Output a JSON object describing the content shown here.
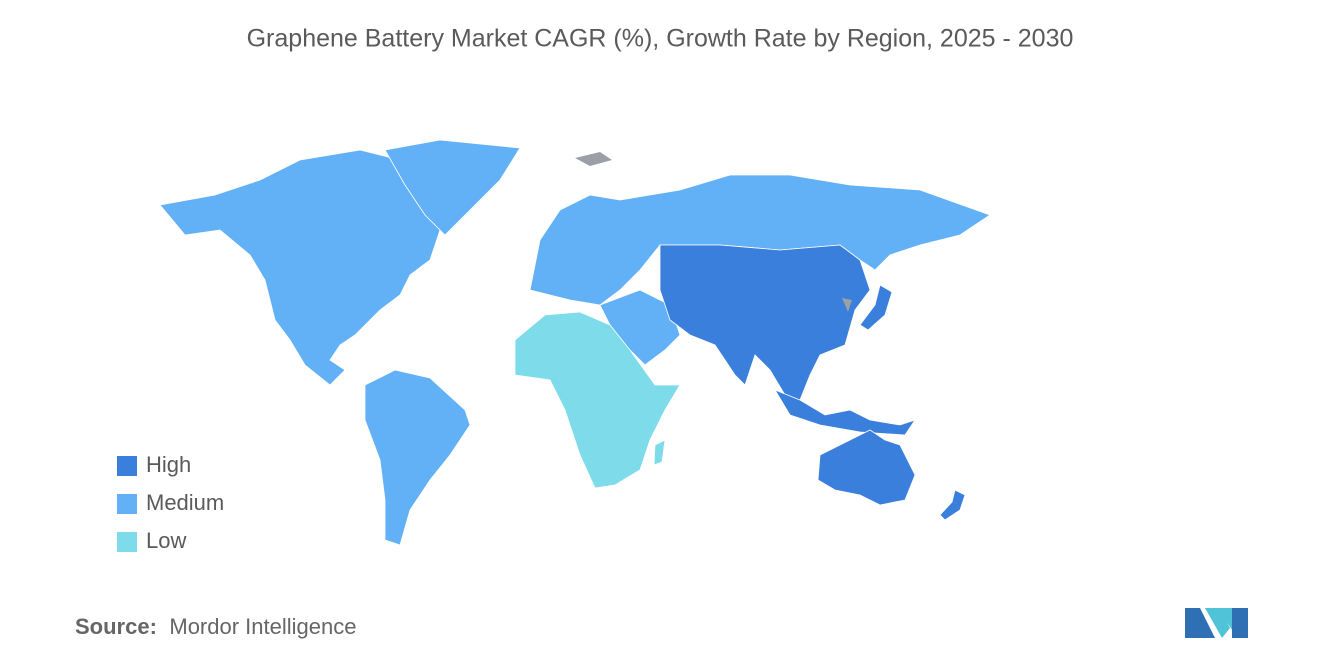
{
  "title": "Graphene Battery Market CAGR (%), Growth Rate by Region, 2025 - 2030",
  "legend": {
    "items": [
      {
        "label": "High",
        "color": "#3a7fdc"
      },
      {
        "label": "Medium",
        "color": "#62b1f6"
      },
      {
        "label": "Low",
        "color": "#7ddbea"
      }
    ]
  },
  "source": {
    "label": "Source:",
    "name": "Mordor Intelligence"
  }
}
